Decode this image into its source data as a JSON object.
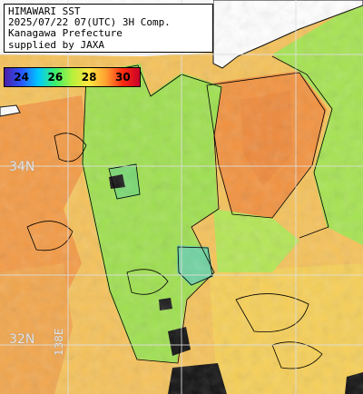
{
  "header": {
    "lines": [
      "HIMAWARI SST",
      "2025/07/22 07(UTC) 3H Comp.",
      "Kanagawa Prefecture",
      "supplied by JAXA"
    ]
  },
  "colorbar": {
    "ticks": [
      "24",
      "26",
      "28",
      "30"
    ],
    "gradient": [
      "#4b1fa6",
      "#2a55ff",
      "#00c8ff",
      "#3cf06a",
      "#b6f03c",
      "#ffe640",
      "#ffa030",
      "#ff2a10",
      "#c8002a"
    ]
  },
  "grid": {
    "lat_labels": [
      "34N",
      "32N"
    ],
    "lon_label": "138E",
    "color": "#e0e0e0"
  },
  "colors": {
    "land": "#ffffff",
    "cloud": "#111111",
    "warm_sea": "#f39a45",
    "mid_sea": "#f7d85a",
    "cool_sea": "#9fe050",
    "coastline": "#000000"
  }
}
